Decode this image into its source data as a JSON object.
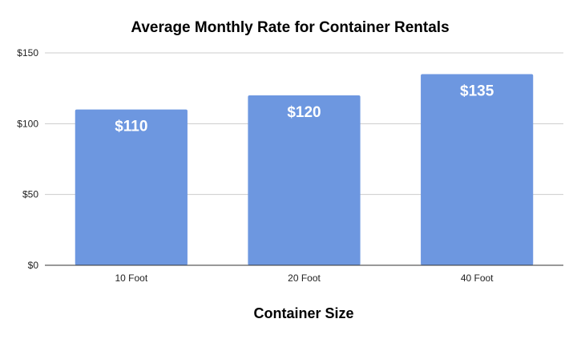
{
  "chart_data": {
    "type": "bar",
    "title": "Average Monthly Rate for Container Rentals",
    "xlabel": "Container Size",
    "ylabel": "",
    "categories": [
      "10 Foot",
      "20 Foot",
      "40 Foot"
    ],
    "values": [
      110,
      120,
      135
    ],
    "data_labels": [
      "$110",
      "$120",
      "$135"
    ],
    "ylim": [
      0,
      150
    ],
    "y_ticks": [
      0,
      50,
      100,
      150
    ],
    "y_tick_labels": [
      "$0",
      "$50",
      "$100",
      "$150"
    ],
    "grid": true,
    "legend": "none",
    "colors": {
      "bar": "#6d97e0",
      "grid": "#cccccc",
      "axis": "#333333"
    }
  }
}
